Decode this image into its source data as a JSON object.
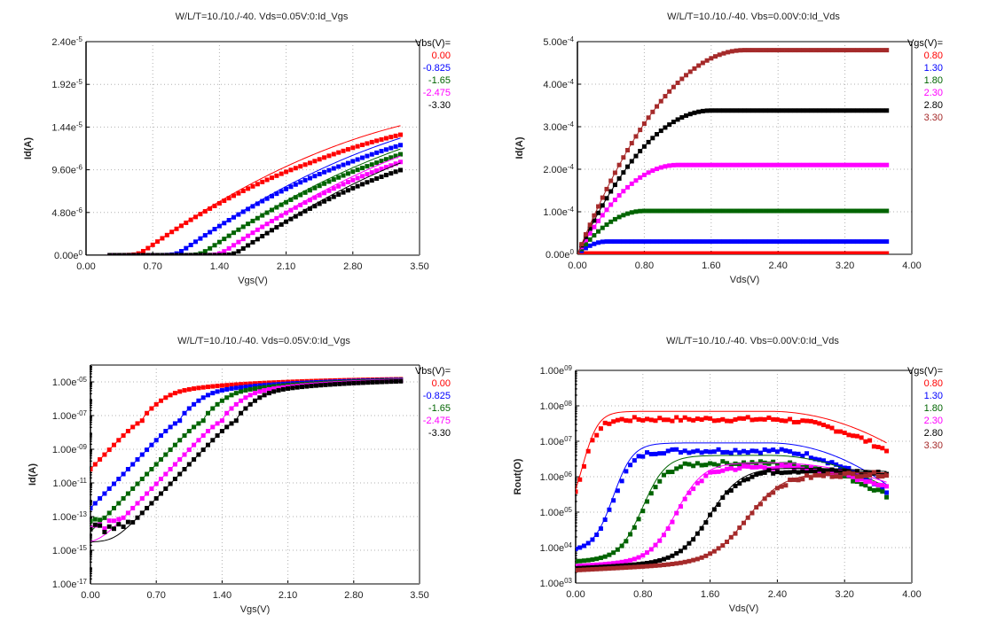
{
  "chart_data": [
    {
      "type": "line",
      "id": "idvgs-linear",
      "title": "W/L/T=10./10./-40.  Vds=0.05V:0:Id_Vgs",
      "xlabel": "Vgs(V)",
      "ylabel": "Id(A)",
      "xlim": [
        0,
        3.5
      ],
      "ylim": [
        0,
        2.4e-05
      ],
      "yscale": "linear",
      "xticks": [
        "0.00",
        "0.70",
        "1.40",
        "2.10",
        "2.80",
        "3.50"
      ],
      "yticks": [
        "0.00e0",
        "4.80e-6",
        "9.60e-6",
        "1.44e-5",
        "1.92e-5",
        "2.40e-5"
      ],
      "grid": true,
      "legend_title": "Vbs(V)=",
      "legend_position": "right",
      "series": [
        {
          "name": "0.00",
          "color": "#ff0000",
          "vth": 0.55,
          "k": 7.9e-06,
          "meas_scale": 0.93
        },
        {
          "name": "-0.825",
          "color": "#0000ff",
          "vth": 0.95,
          "k": 7.8e-06,
          "meas_scale": 0.94
        },
        {
          "name": "-1.65",
          "color": "#006400",
          "vth": 1.2,
          "k": 7.6e-06,
          "meas_scale": 0.95
        },
        {
          "name": "-2.475",
          "color": "#ff00ff",
          "vth": 1.4,
          "k": 7.6e-06,
          "meas_scale": 0.94
        },
        {
          "name": "-3.30",
          "color": "#000000",
          "vth": 1.55,
          "k": 7.5e-06,
          "meas_scale": 0.92
        }
      ]
    },
    {
      "type": "line",
      "id": "idvds",
      "title": "W/L/T=10./10./-40.  Vbs=0.00V:0:Id_Vds",
      "xlabel": "Vds(V)",
      "ylabel": "Id(A)",
      "xlim": [
        0,
        4.0
      ],
      "ylim": [
        0,
        0.0005
      ],
      "yscale": "linear",
      "xticks": [
        "0.00",
        "0.80",
        "1.60",
        "2.40",
        "3.20",
        "4.00"
      ],
      "yticks": [
        "0.00e0",
        "1.00e-4",
        "2.00e-4",
        "3.00e-4",
        "4.00e-4",
        "5.00e-4"
      ],
      "grid": true,
      "legend_title": "Vgs(V)=",
      "legend_position": "right",
      "series": [
        {
          "name": "0.80",
          "color": "#ff0000",
          "isat": 2e-06,
          "vdsat": 0.1
        },
        {
          "name": "1.30",
          "color": "#0000ff",
          "isat": 3e-05,
          "vdsat": 0.35
        },
        {
          "name": "1.80",
          "color": "#006400",
          "isat": 0.000102,
          "vdsat": 0.8
        },
        {
          "name": "2.30",
          "color": "#ff00ff",
          "isat": 0.00021,
          "vdsat": 1.2
        },
        {
          "name": "2.80",
          "color": "#000000",
          "isat": 0.000338,
          "vdsat": 1.6
        },
        {
          "name": "3.30",
          "color": "#a52a2a",
          "isat": 0.00048,
          "vdsat": 2.0
        }
      ]
    },
    {
      "type": "line",
      "id": "idvgs-log",
      "title": "W/L/T=10./10./-40.  Vds=0.05V:0:Id_Vgs",
      "xlabel": "Vgs(V)",
      "ylabel": "Id(A)",
      "xlim": [
        0,
        3.5
      ],
      "ylim": [
        1e-17,
        0.0001
      ],
      "yscale": "log",
      "xticks": [
        "0.00",
        "0.70",
        "1.40",
        "2.10",
        "2.80",
        "3.50"
      ],
      "yticks": [
        "1.00e-17",
        "1.00e-15",
        "1.00e-13",
        "1.00e-11",
        "1.00e-09",
        "1.00e-07",
        "1.00e-05"
      ],
      "grid": true,
      "legend_title": "Vbs(V)=",
      "legend_position": "right",
      "series": [
        {
          "name": "0.00",
          "color": "#ff0000",
          "vth": 0.55,
          "floor": 3e-17,
          "noise": 2e-13
        },
        {
          "name": "-0.825",
          "color": "#0000ff",
          "vth": 0.95,
          "floor": 9e-16,
          "noise": 1e-13
        },
        {
          "name": "-1.65",
          "color": "#006400",
          "vth": 1.2,
          "floor": 1.6e-15,
          "noise": 6e-14
        },
        {
          "name": "-2.475",
          "color": "#ff00ff",
          "vth": 1.4,
          "floor": 2.5e-15,
          "noise": 4e-14
        },
        {
          "name": "-3.30",
          "color": "#000000",
          "vth": 1.55,
          "floor": 3e-15,
          "noise": 3e-14
        }
      ]
    },
    {
      "type": "line",
      "id": "rout-vds",
      "title": "W/L/T=10./10./-40.  Vbs=0.00V:0:Id_Vds",
      "xlabel": "Vds(V)",
      "ylabel": "Rout(O)",
      "xlim": [
        0,
        4.0
      ],
      "ylim": [
        1000.0,
        1000000000.0
      ],
      "yscale": "log",
      "xticks": [
        "0.00",
        "0.80",
        "1.60",
        "2.40",
        "3.20",
        "4.00"
      ],
      "yticks": [
        "1.00e03",
        "1.00e04",
        "1.00e05",
        "1.00e06",
        "1.00e07",
        "1.00e08",
        "1.00e09"
      ],
      "grid": true,
      "legend_title": "Vgs(V)=",
      "legend_position": "right",
      "series": [
        {
          "name": "0.80",
          "color": "#ff0000",
          "r0": 50000.0,
          "rsat": 70000000.0,
          "vknee": 0.08,
          "rend": 9000000.0,
          "meas_ratio": 0.6
        },
        {
          "name": "1.30",
          "color": "#0000ff",
          "r0": 8000.0,
          "rsat": 9000000.0,
          "vknee": 0.45,
          "rend": 600000.0,
          "meas_ratio": 0.6
        },
        {
          "name": "1.80",
          "color": "#006400",
          "r0": 4000.0,
          "rsat": 4000000.0,
          "vknee": 0.8,
          "rend": 500000.0,
          "meas_ratio": 0.6
        },
        {
          "name": "2.30",
          "color": "#ff00ff",
          "r0": 3000.0,
          "rsat": 2500000.0,
          "vknee": 1.2,
          "rend": 700000.0,
          "meas_ratio": 0.75
        },
        {
          "name": "2.80",
          "color": "#000000",
          "r0": 2600.0,
          "rsat": 1800000.0,
          "vknee": 1.6,
          "rend": 1400000.0,
          "meas_ratio": 0.85
        },
        {
          "name": "3.30",
          "color": "#a52a2a",
          "r0": 2300.0,
          "rsat": 1300000.0,
          "vknee": 2.05,
          "rend": 1300000.0,
          "meas_ratio": 0.9
        }
      ]
    }
  ]
}
